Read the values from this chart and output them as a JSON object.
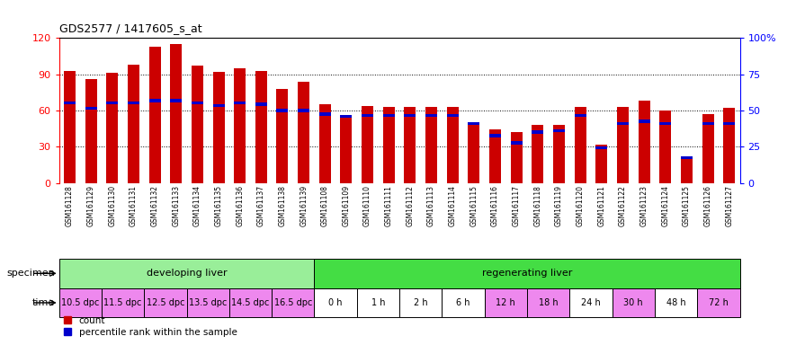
{
  "title": "GDS2577 / 1417605_s_at",
  "samples": [
    "GSM161128",
    "GSM161129",
    "GSM161130",
    "GSM161131",
    "GSM161132",
    "GSM161133",
    "GSM161134",
    "GSM161135",
    "GSM161136",
    "GSM161137",
    "GSM161138",
    "GSM161139",
    "GSM161108",
    "GSM161109",
    "GSM161110",
    "GSM161111",
    "GSM161112",
    "GSM161113",
    "GSM161114",
    "GSM161115",
    "GSM161116",
    "GSM161117",
    "GSM161118",
    "GSM161119",
    "GSM161120",
    "GSM161121",
    "GSM161122",
    "GSM161123",
    "GSM161124",
    "GSM161125",
    "GSM161126",
    "GSM161127"
  ],
  "count_values": [
    93,
    86,
    91,
    98,
    113,
    115,
    97,
    92,
    95,
    93,
    78,
    84,
    65,
    56,
    64,
    63,
    63,
    63,
    63,
    48,
    44,
    42,
    48,
    48,
    63,
    32,
    63,
    68,
    60,
    22,
    57,
    62
  ],
  "percentile_values": [
    66,
    62,
    66,
    66,
    68,
    68,
    66,
    64,
    66,
    65,
    60,
    60,
    57,
    55,
    56,
    56,
    56,
    56,
    56,
    49,
    39,
    33,
    42,
    43,
    56,
    29,
    49,
    51,
    49,
    21,
    49,
    49
  ],
  "bar_color": "#cc0000",
  "blue_color": "#0000cc",
  "left_ylim": [
    0,
    120
  ],
  "left_yticks": [
    0,
    30,
    60,
    90,
    120
  ],
  "right_ylim": [
    0,
    100
  ],
  "right_yticks": [
    0,
    25,
    50,
    75,
    100
  ],
  "right_yticklabels": [
    "0",
    "25",
    "50",
    "75",
    "100%"
  ],
  "specimen_groups": [
    {
      "label": "developing liver",
      "start": 0,
      "end": 12,
      "color": "#99ee99"
    },
    {
      "label": "regenerating liver",
      "start": 12,
      "end": 32,
      "color": "#44dd44"
    }
  ],
  "time_groups": [
    {
      "label": "10.5 dpc",
      "start": 0,
      "end": 2,
      "color": "#ee88ee"
    },
    {
      "label": "11.5 dpc",
      "start": 2,
      "end": 4,
      "color": "#ee88ee"
    },
    {
      "label": "12.5 dpc",
      "start": 4,
      "end": 6,
      "color": "#ee88ee"
    },
    {
      "label": "13.5 dpc",
      "start": 6,
      "end": 8,
      "color": "#ee88ee"
    },
    {
      "label": "14.5 dpc",
      "start": 8,
      "end": 10,
      "color": "#ee88ee"
    },
    {
      "label": "16.5 dpc",
      "start": 10,
      "end": 12,
      "color": "#ee88ee"
    },
    {
      "label": "0 h",
      "start": 12,
      "end": 14,
      "color": "#ffffff"
    },
    {
      "label": "1 h",
      "start": 14,
      "end": 16,
      "color": "#ffffff"
    },
    {
      "label": "2 h",
      "start": 16,
      "end": 18,
      "color": "#ffffff"
    },
    {
      "label": "6 h",
      "start": 18,
      "end": 20,
      "color": "#ffffff"
    },
    {
      "label": "12 h",
      "start": 20,
      "end": 22,
      "color": "#ee88ee"
    },
    {
      "label": "18 h",
      "start": 22,
      "end": 24,
      "color": "#ee88ee"
    },
    {
      "label": "24 h",
      "start": 24,
      "end": 26,
      "color": "#ffffff"
    },
    {
      "label": "30 h",
      "start": 26,
      "end": 28,
      "color": "#ee88ee"
    },
    {
      "label": "48 h",
      "start": 28,
      "end": 30,
      "color": "#ffffff"
    },
    {
      "label": "72 h",
      "start": 30,
      "end": 32,
      "color": "#ee88ee"
    }
  ],
  "background_color": "#ffffff",
  "chart_bg": "#ffffff"
}
